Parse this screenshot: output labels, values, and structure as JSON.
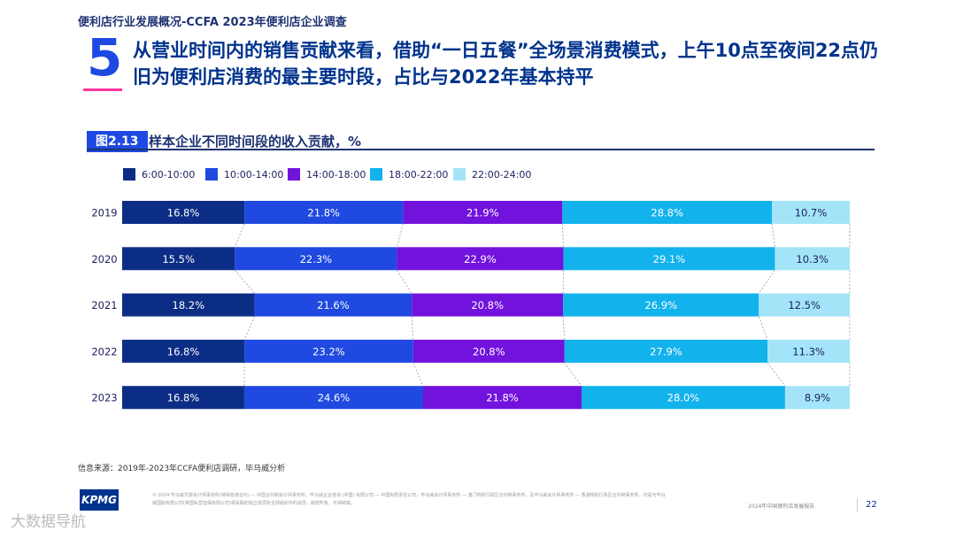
{
  "header": {
    "topline": "便利店行业发展概况-CCFA 2023年便利店企业调查",
    "number": "5",
    "headline": "从营业时间内的销售贡献来看，借助“一日五餐”全场景消费模式，上午10点至夜间22点仍旧为便利店消费的最主要时段，占比与2022年基本持平"
  },
  "figure": {
    "tag": "图2.13",
    "title": "样本企业不同时间段的收入贡献，%"
  },
  "chart_data": {
    "type": "bar",
    "orientation": "horizontal",
    "stacked": true,
    "percent": true,
    "categories": [
      "2019",
      "2020",
      "2021",
      "2022",
      "2023"
    ],
    "series": [
      {
        "name": "6:00-10:00",
        "color": "#0c2d85",
        "values": [
          16.8,
          15.5,
          18.2,
          16.8,
          16.8
        ]
      },
      {
        "name": "10:00-14:00",
        "color": "#1f49e0",
        "values": [
          21.8,
          22.3,
          21.6,
          23.2,
          24.6
        ]
      },
      {
        "name": "14:00-18:00",
        "color": "#7212dd",
        "values": [
          21.9,
          22.9,
          20.8,
          20.8,
          21.8
        ]
      },
      {
        "name": "18:00-22:00",
        "color": "#12b2ec",
        "values": [
          28.8,
          29.1,
          26.9,
          27.9,
          28.0
        ]
      },
      {
        "name": "22:00-24:00",
        "color": "#a4e4f9",
        "values": [
          10.7,
          10.3,
          12.5,
          11.3,
          8.9
        ]
      }
    ],
    "value_labels": [
      [
        "16.8%",
        "21.8%",
        "21.9%",
        "28.8%",
        "10.7%"
      ],
      [
        "15.5%",
        "22.3%",
        "22.9%",
        "29.1%",
        "10.3%"
      ],
      [
        "18.2%",
        "21.6%",
        "20.8%",
        "26.9%",
        "12.5%"
      ],
      [
        "16.8%",
        "23.2%",
        "20.8%",
        "27.9%",
        "11.3%"
      ],
      [
        "16.8%",
        "24.6%",
        "21.8%",
        "28.0%",
        "8.9%"
      ]
    ],
    "label_colors": [
      "#ffffff",
      "#ffffff",
      "#ffffff",
      "#ffffff",
      "#1b1f5e"
    ],
    "legend_position": "top-left",
    "grid": false
  },
  "footer": {
    "source": "信息来源：2019年-2023年CCFA便利店调研，毕马威分析",
    "logo_text": "KPMG",
    "legal": "© 2024 毕马威华振会计师事务所(特殊普通合伙) — 中国合伙制会计师事务所，毕马威企业咨询 (中国) 有限公司 — 中国有限责任公司，毕马威会计师事务所 — 澳门特别行政区合伙制事务所，及毕马威会计师事务所 — 香港特别行政区合伙制事务所，均是与毕马威国际有限公司(英国私营担保有限公司)相关联的独立成员所全球组织中的成员。版权所有，不得转载。",
    "report_name": "2024年中国便利店发展报告",
    "page_number": "22",
    "watermark": "大数据导航"
  }
}
